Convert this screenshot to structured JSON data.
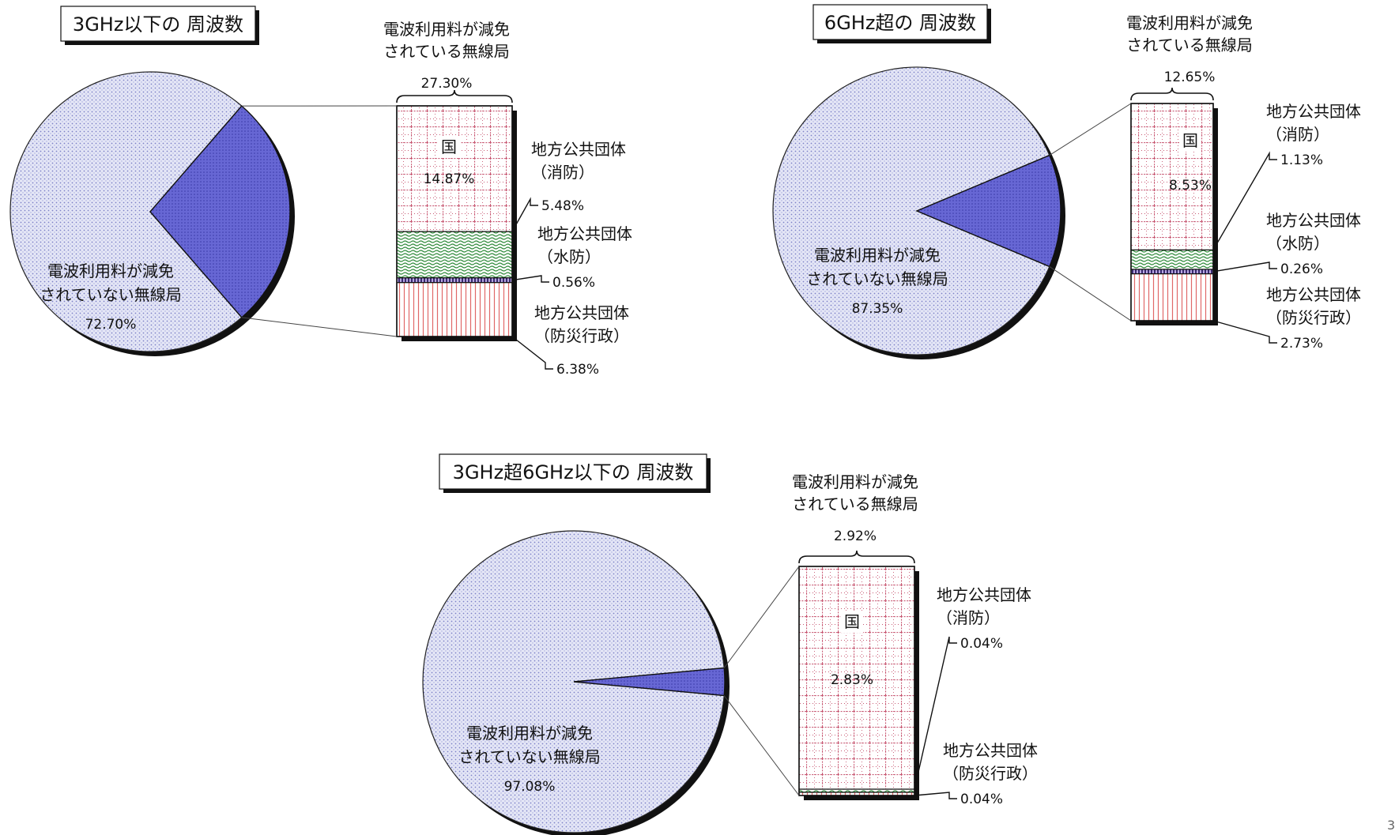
{
  "page_number": "3",
  "chart_data": [
    {
      "type": "pie",
      "title": "3GHz以下の 周波数",
      "slices": [
        {
          "label_lines": [
            "電波利用料が減免",
            "されていない無線局"
          ],
          "value": 72.7,
          "value_label": "72.70%"
        },
        {
          "label_lines": [
            "電波利用料が減免",
            "されている無線局"
          ],
          "value": 27.3,
          "value_label": "27.30%",
          "exploded": true
        }
      ],
      "breakdown": {
        "title_lines": [
          "電波利用料が減免",
          "されている無線局"
        ],
        "total_label": "27.30%",
        "segments": [
          {
            "name": "国",
            "value": 14.87,
            "value_label": "14.87%",
            "pattern": "grid"
          },
          {
            "name": "地方公共団体（消防）",
            "name_lines": [
              "地方公共団体",
              "（消防）"
            ],
            "value": 5.48,
            "value_label": "5.48%",
            "pattern": "wave"
          },
          {
            "name": "地方公共団体（水防）",
            "name_lines": [
              "地方公共団体",
              "（水防）"
            ],
            "value": 0.56,
            "value_label": "0.56%",
            "pattern": "dark"
          },
          {
            "name": "地方公共団体（防災行政）",
            "name_lines": [
              "地方公共団体",
              "（防災行政）"
            ],
            "value": 6.38,
            "value_label": "6.38%",
            "pattern": "stripe"
          }
        ]
      }
    },
    {
      "type": "pie",
      "title": "6GHz超の 周波数",
      "slices": [
        {
          "label_lines": [
            "電波利用料が減免",
            "されていない無線局"
          ],
          "value": 87.35,
          "value_label": "87.35%"
        },
        {
          "label_lines": [
            "電波利用料が減免",
            "されている無線局"
          ],
          "value": 12.65,
          "value_label": "12.65%",
          "exploded": true
        }
      ],
      "breakdown": {
        "title_lines": [
          "電波利用料が減免",
          "されている無線局"
        ],
        "total_label": "12.65%",
        "segments": [
          {
            "name": "国",
            "value": 8.53,
            "value_label": "8.53%",
            "pattern": "grid"
          },
          {
            "name": "地方公共団体（消防）",
            "name_lines": [
              "地方公共団体",
              "（消防）"
            ],
            "value": 1.13,
            "value_label": "1.13%",
            "pattern": "wave"
          },
          {
            "name": "地方公共団体（水防）",
            "name_lines": [
              "地方公共団体",
              "（水防）"
            ],
            "value": 0.26,
            "value_label": "0.26%",
            "pattern": "dark"
          },
          {
            "name": "地方公共団体（防災行政）",
            "name_lines": [
              "地方公共団体",
              "（防災行政）"
            ],
            "value": 2.73,
            "value_label": "2.73%",
            "pattern": "stripe"
          }
        ]
      }
    },
    {
      "type": "pie",
      "title": "3GHz超6GHz以下の 周波数",
      "slices": [
        {
          "label_lines": [
            "電波利用料が減免",
            "されていない無線局"
          ],
          "value": 97.08,
          "value_label": "97.08%"
        },
        {
          "label_lines": [
            "電波利用料が減免",
            "されている無線局"
          ],
          "value": 2.92,
          "value_label": "2.92%",
          "exploded": true
        }
      ],
      "breakdown": {
        "title_lines": [
          "電波利用料が減免",
          "されている無線局"
        ],
        "total_label": "2.92%",
        "segments": [
          {
            "name": "国",
            "value": 2.83,
            "value_label": "2.83%",
            "pattern": "grid"
          },
          {
            "name": "地方公共団体（消防）",
            "name_lines": [
              "地方公共団体",
              "（消防）"
            ],
            "value": 0.04,
            "value_label": "0.04%",
            "pattern": "wave"
          },
          {
            "name": "地方公共団体（防災行政）",
            "name_lines": [
              "地方公共団体",
              "（防災行政）"
            ],
            "value": 0.04,
            "value_label": "0.04%",
            "pattern": "stripe"
          }
        ]
      }
    }
  ],
  "colors": {
    "pie_main": "#d8daf2",
    "pie_exploded": "#6a6ad6",
    "grid_pattern": "#d06a80",
    "wave_pattern": "#2f8a3a",
    "stripe_pattern": "#e06868",
    "dark_segment": "#3a2a70",
    "shadow": "#111111"
  }
}
